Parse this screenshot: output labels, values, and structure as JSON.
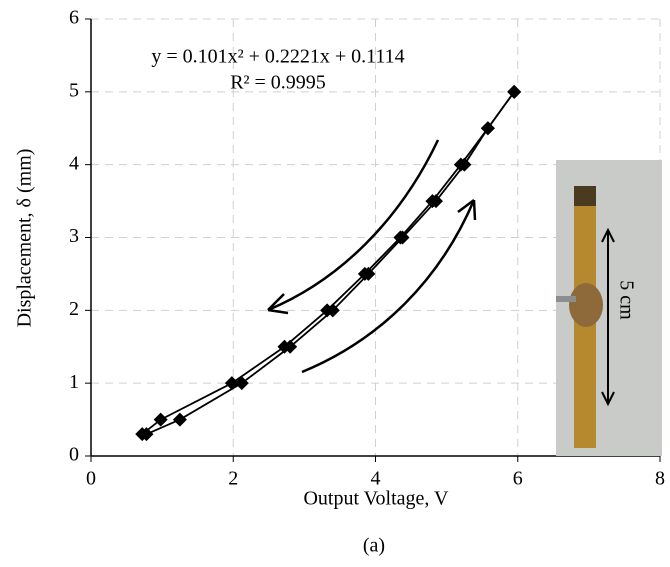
{
  "chart_data": {
    "type": "line",
    "xlabel": "Output Voltage, V",
    "ylabel": "Displacement, δ (mm)",
    "annotations": [
      "y = 0.101x² + 0.2221x + 0.1114",
      "R² = 0.9995"
    ],
    "caption": "(a)",
    "inset_label": "5 cm",
    "xlim": [
      0,
      8
    ],
    "xticks": [
      0,
      2,
      4,
      6,
      8
    ],
    "ylim": [
      0,
      6
    ],
    "yticks": [
      0,
      1,
      2,
      3,
      4,
      5,
      6
    ],
    "grid": true,
    "series": [
      {
        "color": "#000000",
        "x": [
          0.72,
          0.98,
          1.98,
          2.72,
          3.32,
          3.85,
          4.35,
          4.8,
          5.2,
          5.58,
          5.95
        ],
        "values": [
          0.3,
          0.5,
          1.0,
          1.5,
          2.0,
          2.5,
          3.0,
          3.5,
          4.0,
          4.5,
          5.0
        ]
      },
      {
        "color": "#000000",
        "x": [
          0.78,
          1.25,
          2.12,
          2.8,
          3.4,
          3.9,
          4.38,
          4.85,
          5.25,
          5.58,
          5.95
        ],
        "values": [
          0.3,
          0.5,
          1.0,
          1.5,
          2.0,
          2.5,
          3.0,
          3.5,
          4.0,
          4.5,
          5.0
        ]
      }
    ]
  }
}
